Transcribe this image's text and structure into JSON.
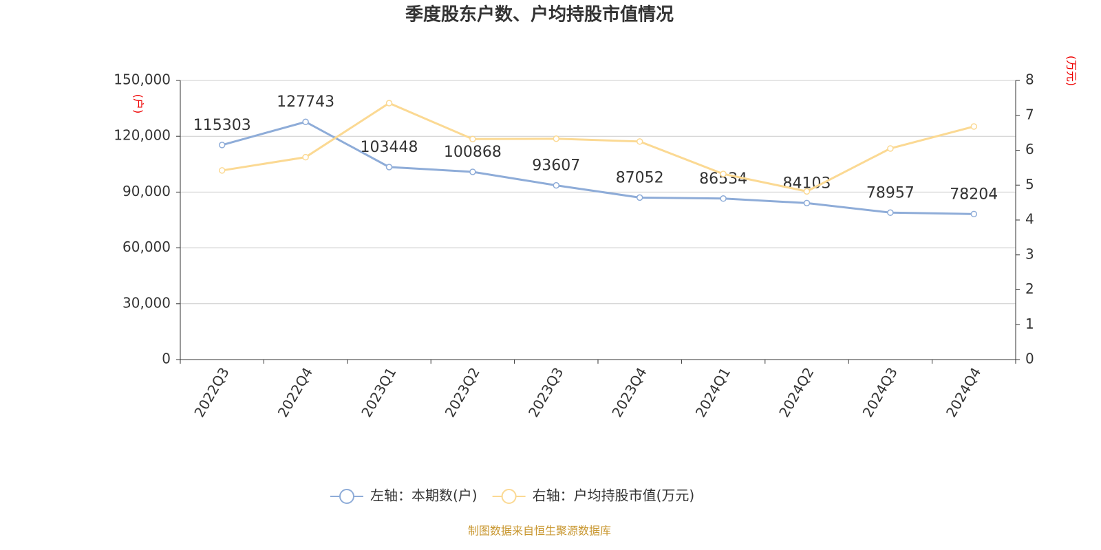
{
  "chart_data": {
    "type": "line",
    "title": "季度股东户数、户均持股市值情况",
    "y_unit": "(户)",
    "y2_unit": "(万元)",
    "source": "制图数据来自恒生聚源数据库",
    "categories": [
      "2022Q3",
      "2022Q4",
      "2023Q1",
      "2023Q2",
      "2023Q3",
      "2023Q4",
      "2024Q1",
      "2024Q2",
      "2024Q3",
      "2024Q4"
    ],
    "series": [
      {
        "name": "左轴：本期数(户)",
        "color": "#8eacd8",
        "show_labels": true,
        "values": [
          115303,
          127743,
          103448,
          100868,
          93607,
          87052,
          86534,
          84103,
          78957,
          78204
        ]
      },
      {
        "name": "右轴：户均持股市值(万元)",
        "color": "#fbd993",
        "axis": "y2",
        "values": [
          5.42,
          5.8,
          7.35,
          6.32,
          6.33,
          6.25,
          5.32,
          4.82,
          6.05,
          6.68
        ]
      }
    ],
    "ylim": [
      0,
      150000
    ],
    "yticks": [
      0,
      {
        "value": 30000,
        "label": "30,000"
      },
      {
        "value": 60000,
        "label": "60,000"
      },
      {
        "value": 90000,
        "label": "90,000"
      },
      {
        "value": 120000,
        "label": "120,000"
      },
      {
        "value": 150000,
        "label": "150,000"
      }
    ],
    "y2lim": [
      0,
      8
    ],
    "y2ticks": [
      0,
      1,
      2,
      3,
      4,
      5,
      6,
      7,
      8
    ],
    "grid": true
  }
}
